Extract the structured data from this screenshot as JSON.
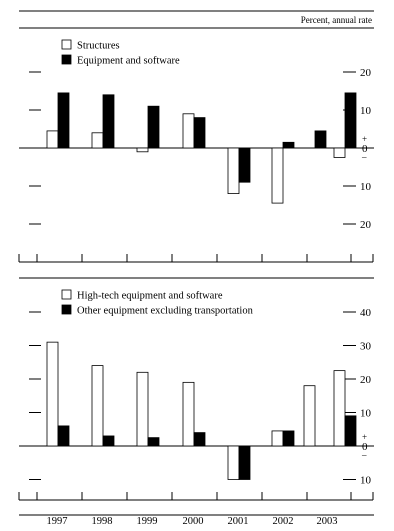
{
  "unit_label": "Percent, annual rate",
  "chart_data": [
    {
      "type": "bar",
      "title": "",
      "categories": [
        "1997",
        "1998",
        "1999",
        "2000",
        "2001",
        "2002",
        "2003",
        "2003"
      ],
      "series": [
        {
          "name": "Structures",
          "values": [
            4.5,
            4,
            -1,
            9,
            -12,
            -14.5,
            0,
            -2.5
          ],
          "color": "#ffffff"
        },
        {
          "name": "Equipment and software",
          "values": [
            14.5,
            14,
            11,
            8,
            -9,
            1.5,
            4.5,
            14.5
          ],
          "color": "#000000"
        }
      ],
      "ylim": [
        -32,
        32
      ],
      "yticks": [
        {
          "value": 20,
          "label": "20"
        },
        {
          "value": 10,
          "label": "10"
        },
        {
          "value": 0,
          "label": "+\n0\n–"
        },
        {
          "value": -10,
          "label": "10"
        },
        {
          "value": -20,
          "label": "20"
        }
      ],
      "legend_position": "top-left",
      "grid": false
    },
    {
      "type": "bar",
      "title": "",
      "categories": [
        "1997",
        "1998",
        "1999",
        "2000",
        "2001",
        "2002",
        "2003",
        "2003"
      ],
      "x_tick_labels": [
        "1997",
        "1998",
        "1999",
        "2000",
        "2001",
        "2002",
        "2003"
      ],
      "series": [
        {
          "name": "High-tech equipment and software",
          "values": [
            31,
            24,
            22,
            19,
            -10,
            4.5,
            18,
            22.5
          ],
          "color": "#ffffff"
        },
        {
          "name": "Other equipment excluding transportation",
          "values": [
            6,
            3,
            2.5,
            4,
            -10,
            4.5,
            0,
            9
          ],
          "color": "#000000"
        }
      ],
      "ylim": [
        -20,
        45
      ],
      "yticks": [
        {
          "value": 40,
          "label": "40"
        },
        {
          "value": 30,
          "label": "30"
        },
        {
          "value": 20,
          "label": "20"
        },
        {
          "value": 10,
          "label": "10"
        },
        {
          "value": 0,
          "label": "+\n0\n–"
        },
        {
          "value": -10,
          "label": "10"
        }
      ],
      "legend_position": "top-left",
      "grid": false
    }
  ]
}
